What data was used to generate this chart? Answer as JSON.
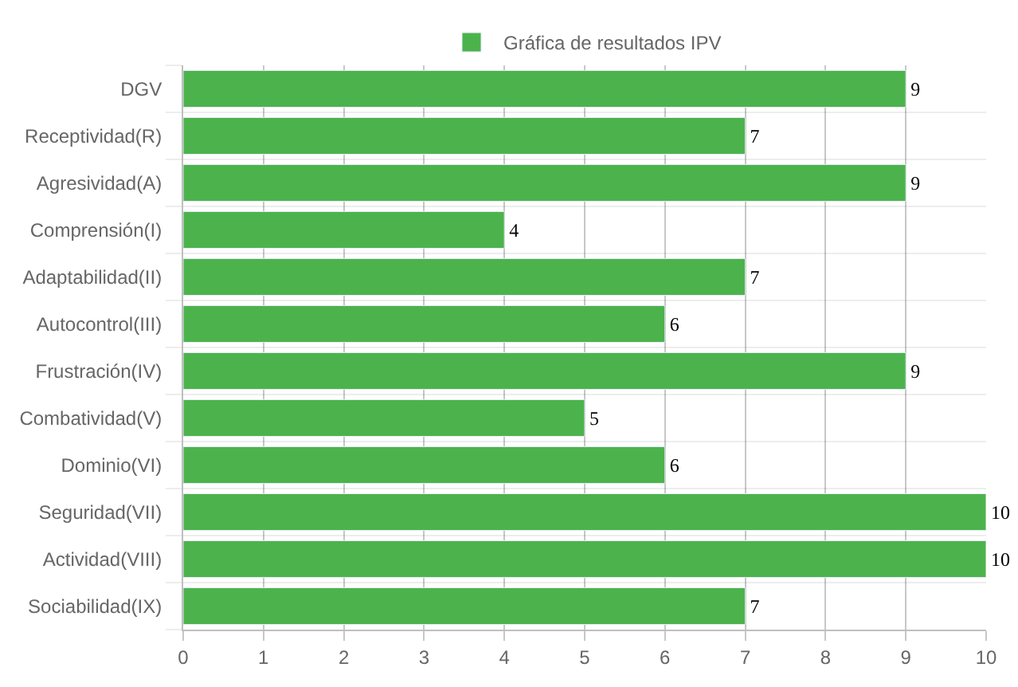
{
  "chart_data": {
    "type": "bar",
    "orientation": "horizontal",
    "categories": [
      "DGV",
      "Receptividad(R)",
      "Agresividad(A)",
      "Comprensión(I)",
      "Adaptabilidad(II)",
      "Autocontrol(III)",
      "Frustración(IV)",
      "Combatividad(V)",
      "Dominio(VI)",
      "Seguridad(VII)",
      "Actividad(VIII)",
      "Sociabilidad(IX)"
    ],
    "series": [
      {
        "name": "Gráfica de resultados IPV",
        "color": "#4cb34c",
        "values": [
          9,
          7,
          9,
          4,
          7,
          6,
          9,
          5,
          6,
          10,
          10,
          7
        ]
      }
    ],
    "xlim": [
      0,
      10
    ],
    "xticks": [
      0,
      1,
      2,
      3,
      4,
      5,
      6,
      7,
      8,
      9,
      10
    ],
    "grid": true,
    "legend": "top",
    "data_labels": true
  }
}
